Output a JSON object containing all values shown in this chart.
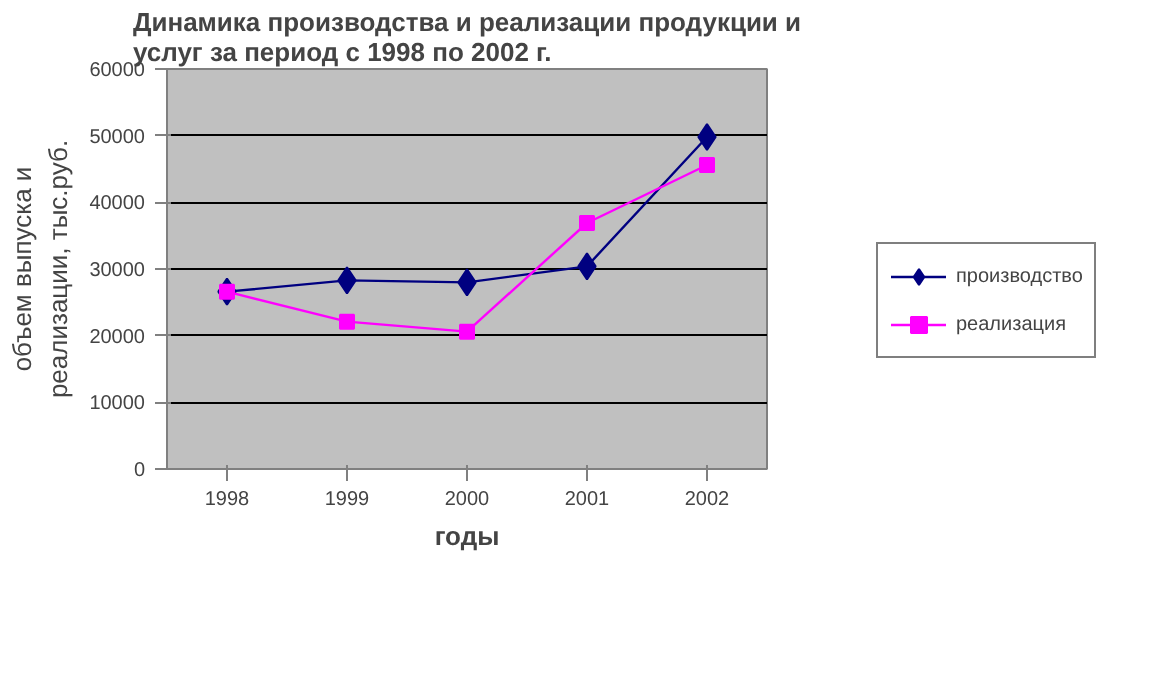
{
  "chart_data": {
    "type": "line",
    "title": "Динамика производства и реализации продукции и\nуслуг за период с 1998 по 2002 г.",
    "xlabel": "годы",
    "ylabel": "объем выпуска и\nреализации, тыс.руб.",
    "categories": [
      "1998",
      "1999",
      "2000",
      "2001",
      "2002"
    ],
    "series": [
      {
        "name": "производство",
        "color": "#000080",
        "marker": "diamond",
        "values": [
          26600,
          28300,
          28000,
          30400,
          49800
        ]
      },
      {
        "name": "реализация",
        "color": "#ff00ff",
        "marker": "square",
        "values": [
          26600,
          22100,
          20600,
          36900,
          45600
        ]
      }
    ],
    "ylim": [
      0,
      60000
    ],
    "yticks": [
      0,
      10000,
      20000,
      30000,
      40000,
      50000,
      60000
    ],
    "grid": "y",
    "legend": "right"
  }
}
